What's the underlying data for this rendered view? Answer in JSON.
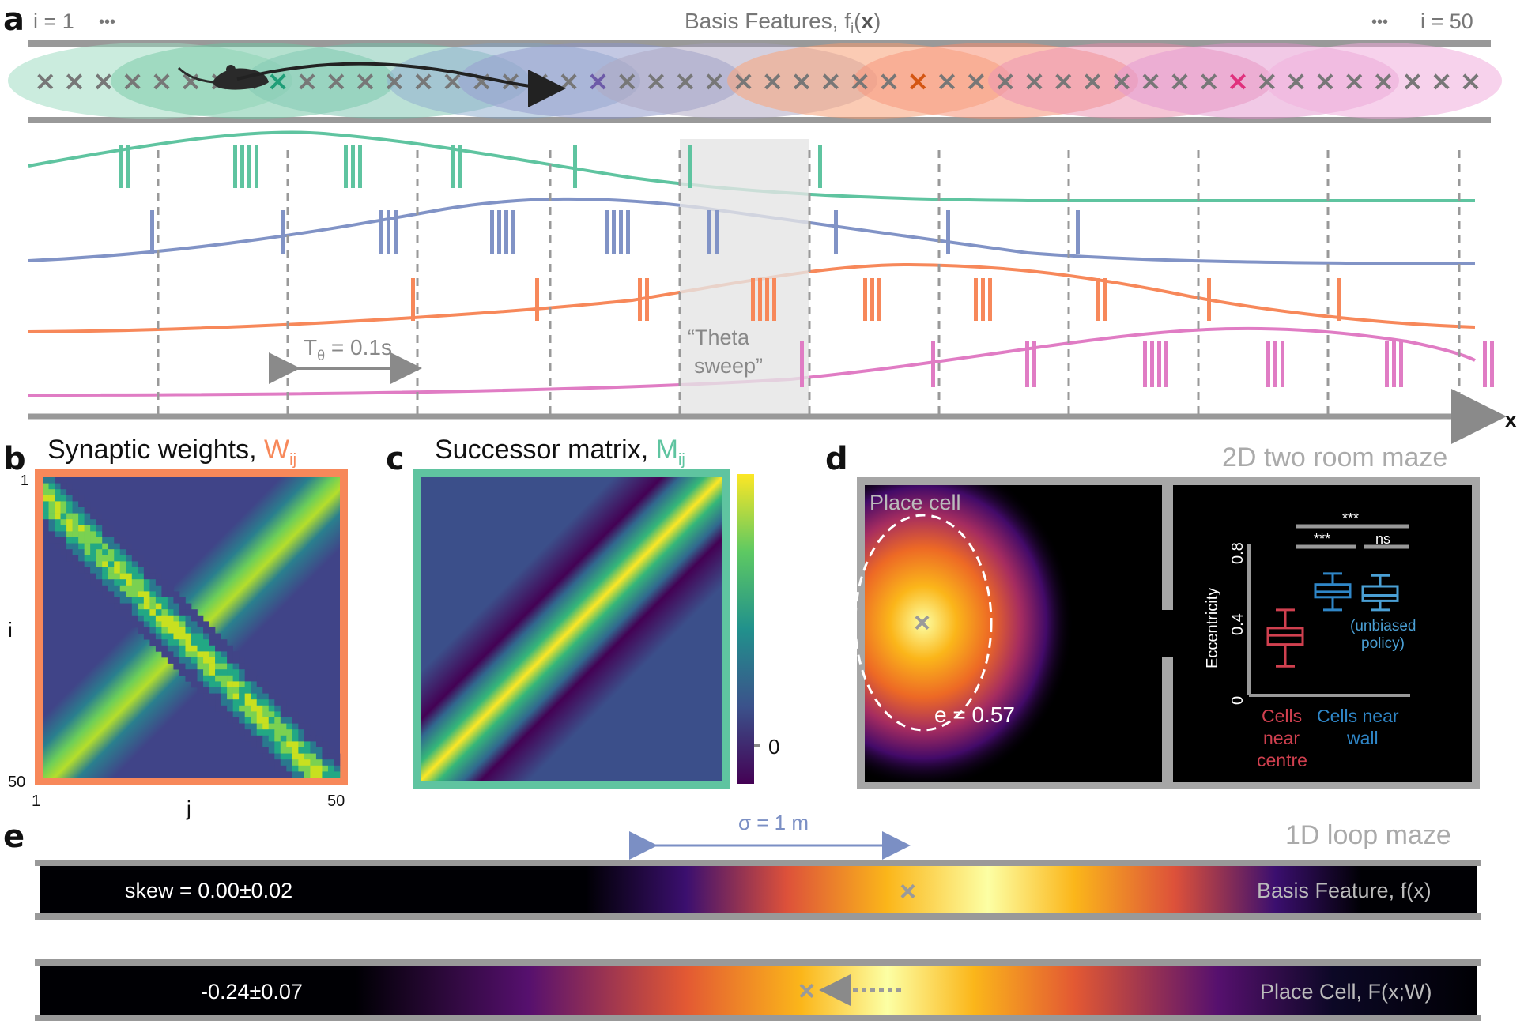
{
  "panel_labels": {
    "a": "a",
    "b": "b",
    "c": "c",
    "d": "d",
    "e": "e"
  },
  "panel_a": {
    "title_prefix": "Basis Features, f",
    "title_sub": "i",
    "title_paren_open": "(",
    "title_x": "x",
    "title_paren_close": ")",
    "left_index": "i = 1",
    "right_index": "i = 50",
    "ellipsis": "•••",
    "x_axis_label": "x",
    "theta_label_main": "T",
    "theta_label_sub": "θ",
    "theta_label_rest": " = 0.1s",
    "sweep_line1": "“Theta",
    "sweep_line2": "sweep”",
    "colors": {
      "green": "#5fc4a0",
      "blue": "#8193c6",
      "orange": "#f7885a",
      "pink": "#e07cc4",
      "grey": "#8a8a8a"
    },
    "spike_rows": [
      {
        "name": "green",
        "bursts": [
          {
            "x": 150,
            "n": 2
          },
          {
            "x": 295,
            "n": 4
          },
          {
            "x": 435,
            "n": 3
          },
          {
            "x": 570,
            "n": 2
          },
          {
            "x": 725,
            "n": 1
          },
          {
            "x": 870,
            "n": 1
          },
          {
            "x": 1035,
            "n": 1
          }
        ]
      },
      {
        "name": "blue",
        "bursts": [
          {
            "x": 190,
            "n": 1
          },
          {
            "x": 355,
            "n": 1
          },
          {
            "x": 480,
            "n": 3
          },
          {
            "x": 620,
            "n": 4
          },
          {
            "x": 765,
            "n": 4
          },
          {
            "x": 895,
            "n": 2
          },
          {
            "x": 1055,
            "n": 1
          },
          {
            "x": 1197,
            "n": 1
          },
          {
            "x": 1361,
            "n": 1
          }
        ]
      },
      {
        "name": "orange",
        "bursts": [
          {
            "x": 520,
            "n": 1
          },
          {
            "x": 677,
            "n": 1
          },
          {
            "x": 807,
            "n": 2
          },
          {
            "x": 950,
            "n": 4
          },
          {
            "x": 1092,
            "n": 3
          },
          {
            "x": 1232,
            "n": 3
          },
          {
            "x": 1386,
            "n": 2
          },
          {
            "x": 1527,
            "n": 1
          },
          {
            "x": 1692,
            "n": 1
          }
        ]
      },
      {
        "name": "pink",
        "bursts": [
          {
            "x": 1012,
            "n": 1
          },
          {
            "x": 1178,
            "n": 1
          },
          {
            "x": 1297,
            "n": 2
          },
          {
            "x": 1446,
            "n": 4
          },
          {
            "x": 1602,
            "n": 3
          },
          {
            "x": 1752,
            "n": 3
          },
          {
            "x": 1876,
            "n": 2
          }
        ]
      }
    ]
  },
  "panel_b": {
    "title": "Synaptic weights, ",
    "sym_main": "W",
    "sym_sub": "ij",
    "y_label": "i",
    "x_label": "j",
    "tick_1_top": "1",
    "tick_50_left": "50",
    "tick_1_bottom": "1",
    "tick_50_bottom": "50",
    "border_color": "#f7885a"
  },
  "panel_c": {
    "title": "Successor matrix, ",
    "sym_main": "M",
    "sym_sub": "ij",
    "colorbar_zero": "0",
    "border_color": "#5fc4a0"
  },
  "panel_d": {
    "title": "2D two room maze",
    "place_cell_label": "Place cell",
    "eccentricity_value": "e = 0.57",
    "y_axis_label": "Eccentricity",
    "y_ticks": [
      "0",
      "0.4",
      "0.8"
    ],
    "sig_top": "***",
    "sig_left": "***",
    "sig_right": "ns",
    "group1_label": [
      "Cells",
      "near",
      "centre"
    ],
    "group2_label": [
      "Cells near",
      "wall"
    ],
    "group3_label": [
      "(unbiased",
      "policy)"
    ],
    "box_colors": [
      "#d0404f",
      "#2f86c7",
      "#4a9fd4"
    ],
    "boxes": [
      {
        "whisker_low": 0.16,
        "q1": 0.28,
        "median": 0.33,
        "q3": 0.37,
        "whisker_high": 0.47
      },
      {
        "whisker_low": 0.47,
        "q1": 0.54,
        "median": 0.57,
        "q3": 0.61,
        "whisker_high": 0.67
      },
      {
        "whisker_low": 0.47,
        "q1": 0.52,
        "median": 0.55,
        "q3": 0.6,
        "whisker_high": 0.66
      }
    ]
  },
  "panel_e": {
    "title": "1D loop maze",
    "sigma_label": "σ = 1 m",
    "skew_top": "skew = 0.00±0.02",
    "skew_bottom": "-0.24±0.07",
    "top_bar_label": "Basis Feature, f(x)",
    "bottom_bar_label": "Place Cell, F(x;W)"
  }
}
